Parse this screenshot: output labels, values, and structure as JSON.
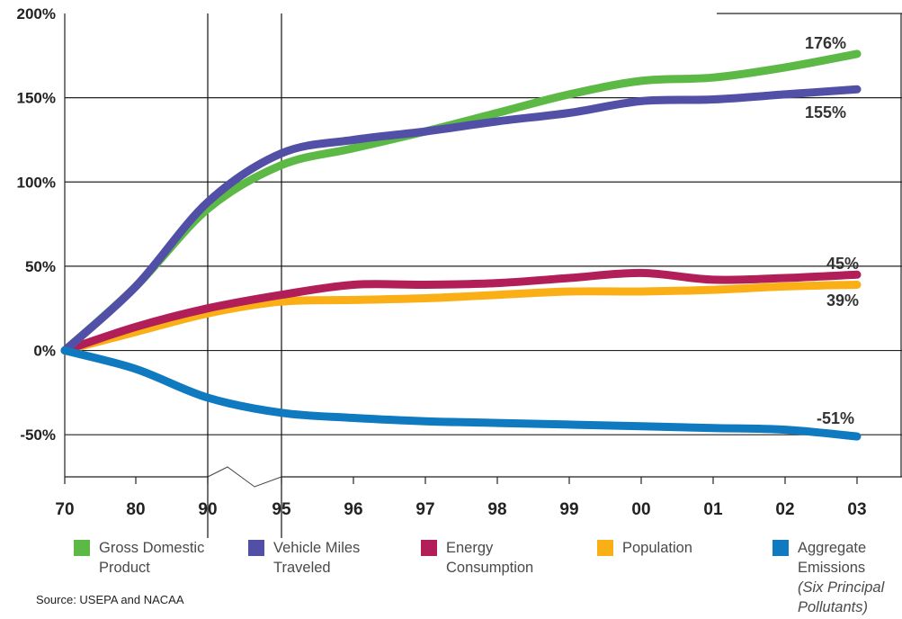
{
  "chart_data": {
    "type": "line",
    "x": [
      "70",
      "80",
      "90",
      "95",
      "96",
      "97",
      "98",
      "99",
      "00",
      "01",
      "02",
      "03"
    ],
    "y_ticks": [
      "200%",
      "150%",
      "100%",
      "50%",
      "0%",
      "-50%"
    ],
    "ylim": [
      -75,
      200
    ],
    "grid": "horizontal",
    "legend_placement": "bottom",
    "series": [
      {
        "name": "Gross Domestic Product",
        "color": "#5cb946",
        "values": [
          0,
          38,
          84,
          110,
          120,
          130,
          141,
          152,
          160,
          162,
          168,
          176
        ],
        "end_label": "176%"
      },
      {
        "name": "Vehicle Miles Traveled",
        "color": "#5150a6",
        "values": [
          0,
          38,
          88,
          117,
          125,
          130,
          136,
          141,
          148,
          149,
          152,
          155
        ],
        "end_label": "155%"
      },
      {
        "name": "Energy Consumption",
        "color": "#b21f58",
        "values": [
          0,
          14,
          25,
          33,
          39,
          39,
          40,
          43,
          46,
          42,
          43,
          45
        ],
        "end_label": "45%"
      },
      {
        "name": "Population",
        "color": "#fbaf17",
        "values": [
          0,
          11,
          22,
          29,
          30,
          31,
          33,
          35,
          35,
          36,
          38,
          39
        ],
        "end_label": "39%"
      },
      {
        "name": "Aggregate Emissions",
        "note": "(Six Principal Pollutants)",
        "color": "#0f7ac0",
        "values": [
          0,
          -11,
          -28,
          -37,
          -40,
          -42,
          -43,
          -44,
          -45,
          -46,
          -47,
          -51
        ],
        "end_label": "-51%"
      }
    ]
  },
  "legend": [
    {
      "lines": [
        "Gross Domestic",
        "Product"
      ],
      "color": "#5cb946"
    },
    {
      "lines": [
        "Vehicle Miles",
        "Traveled"
      ],
      "color": "#5150a6"
    },
    {
      "lines": [
        "Energy",
        "Consumption"
      ],
      "color": "#b21f58"
    },
    {
      "lines": [
        "Population"
      ],
      "color": "#fbaf17"
    },
    {
      "lines": [
        "Aggregate",
        "Emissions"
      ],
      "note_lines": [
        "(Six Principal",
        "Pollutants)"
      ],
      "color": "#0f7ac0"
    }
  ],
  "source": "Source: USEPA and NACAA"
}
